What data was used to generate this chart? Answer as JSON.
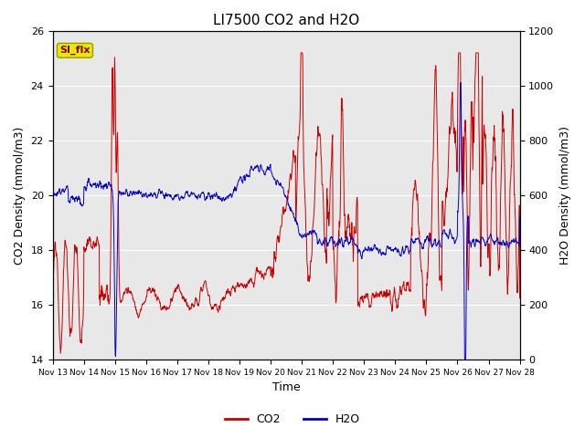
{
  "title": "LI7500 CO2 and H2O",
  "xlabel": "Time",
  "ylabel_left": "CO2 Density (mmol/m3)",
  "ylabel_right": "H2O Density (mmol/m3)",
  "ylim_left": [
    14,
    26
  ],
  "ylim_right": [
    0,
    1200
  ],
  "yticks_left": [
    14,
    16,
    18,
    20,
    22,
    24,
    26
  ],
  "yticks_right": [
    0,
    200,
    400,
    600,
    800,
    1000,
    1200
  ],
  "xtick_labels": [
    "Nov 13",
    "Nov 14",
    "Nov 15",
    "Nov 16",
    "Nov 17",
    "Nov 18",
    "Nov 19",
    "Nov 20",
    "Nov 21",
    "Nov 22",
    "Nov 23",
    "Nov 24",
    "Nov 25",
    "Nov 26",
    "Nov 27",
    "Nov 28"
  ],
  "legend_labels": [
    "CO2",
    "H2O"
  ],
  "co2_color": "#cc0000",
  "h2o_color": "#0000cc",
  "annotation_text": "SI_flx",
  "annotation_box_facecolor": "#e8e800",
  "annotation_box_edgecolor": "#999900",
  "annotation_text_color": "#880000",
  "background_color": "#e8e8e8",
  "grid_color": "#ffffff",
  "figsize": [
    6.4,
    4.8
  ],
  "dpi": 100
}
